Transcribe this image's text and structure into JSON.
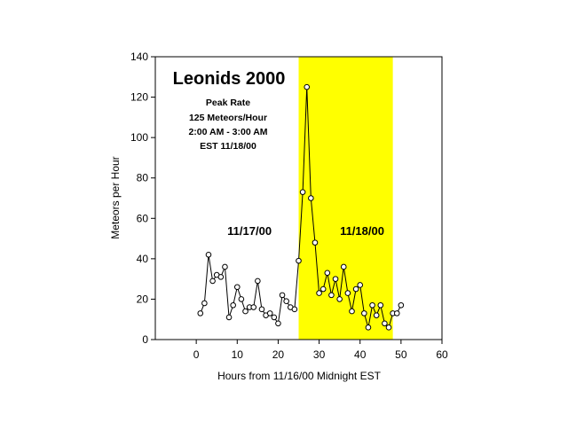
{
  "chart_data": {
    "type": "line",
    "title": "Leonids 2000",
    "annotation_lines": [
      "Peak Rate",
      "125 Meteors/Hour",
      "2:00 AM - 3:00 AM",
      "EST 11/18/00"
    ],
    "region_labels": [
      {
        "text": "11/17/00",
        "x": 13,
        "y": 54
      },
      {
        "text": "11/18/00",
        "x": 40.5,
        "y": 54
      }
    ],
    "highlight": {
      "x_start": 25,
      "x_end": 48,
      "color": "#ffff00"
    },
    "xlabel": "Hours from 11/16/00 Midnight EST",
    "ylabel": "Meteors per Hour",
    "xlim": [
      -10,
      60
    ],
    "ylim": [
      0,
      140
    ],
    "xticks": [
      0,
      10,
      20,
      30,
      40,
      50,
      60
    ],
    "yticks": [
      0,
      20,
      40,
      60,
      80,
      100,
      120,
      140
    ],
    "grid": false,
    "marker": "open-circle",
    "line_color": "#000000",
    "x": [
      1,
      2,
      3,
      4,
      5,
      6,
      7,
      8,
      9,
      10,
      11,
      12,
      13,
      14,
      15,
      16,
      17,
      18,
      19,
      20,
      21,
      22,
      23,
      24,
      25,
      26,
      27,
      28,
      29,
      30,
      31,
      32,
      33,
      34,
      35,
      36,
      37,
      38,
      39,
      40,
      41,
      42,
      43,
      44,
      45,
      46,
      47,
      48,
      49,
      50
    ],
    "y": [
      13,
      18,
      42,
      29,
      32,
      31,
      36,
      11,
      17,
      26,
      20,
      14,
      16,
      16,
      29,
      15,
      12,
      13,
      11,
      8,
      22,
      19,
      16,
      15,
      39,
      73,
      125,
      70,
      48,
      23,
      25,
      33,
      22,
      30,
      20,
      36,
      23,
      14,
      25,
      27,
      13,
      6,
      17,
      12,
      17,
      8,
      6,
      13,
      13,
      17
    ]
  }
}
